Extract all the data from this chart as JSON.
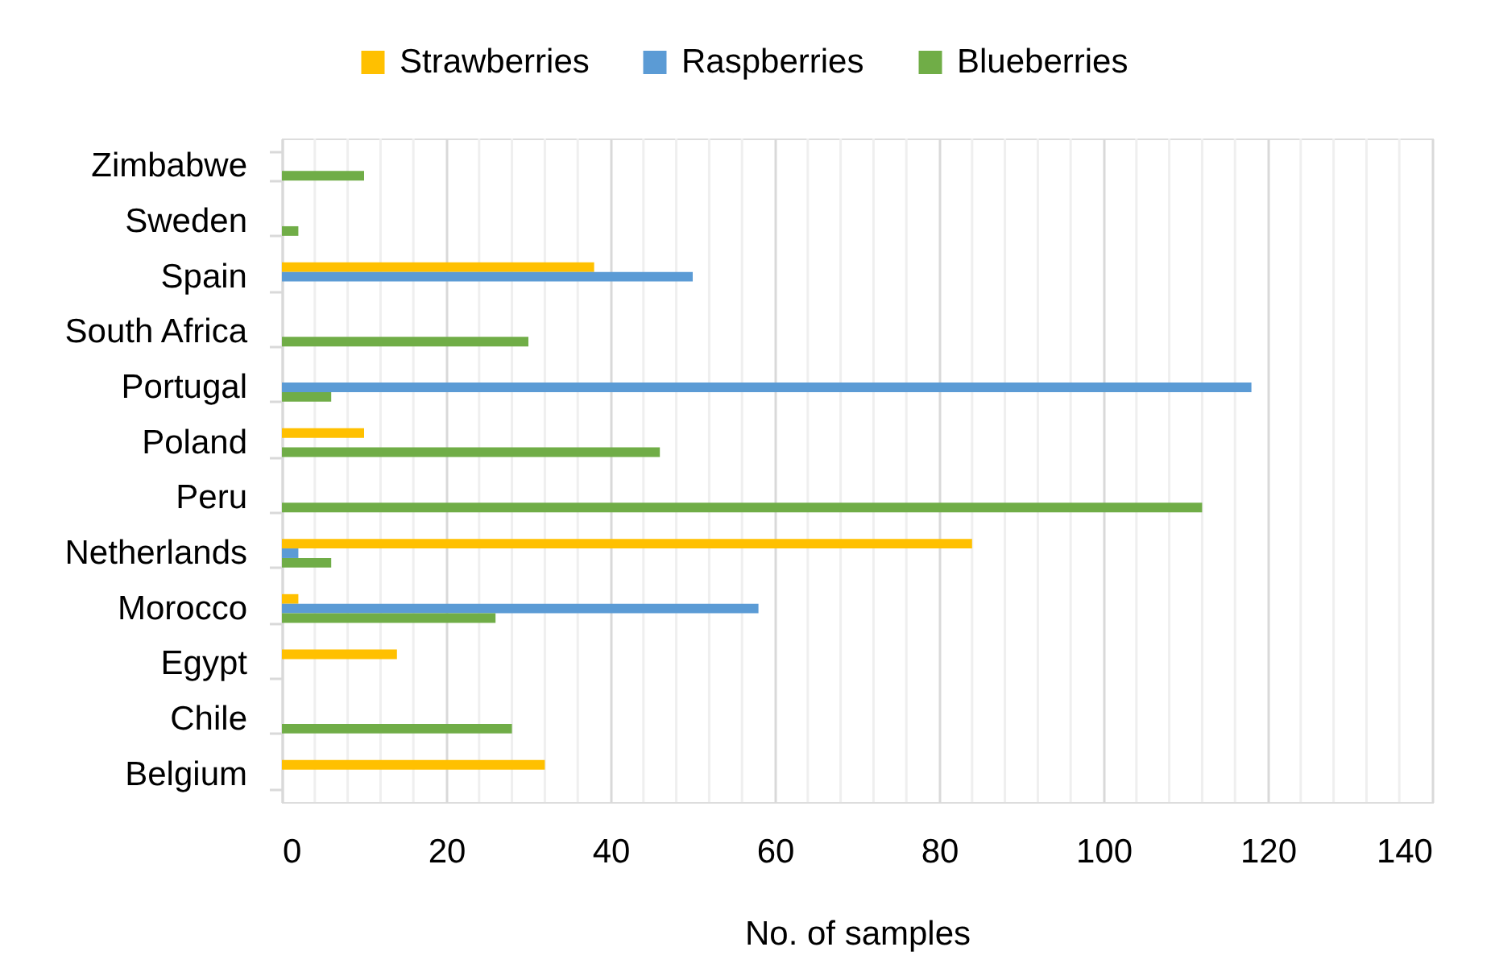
{
  "chart_data": {
    "type": "bar",
    "orientation": "horizontal",
    "xlabel": "No. of samples",
    "categories": [
      "Zimbabwe",
      "Sweden",
      "Spain",
      "South Africa",
      "Portugal",
      "Poland",
      "Peru",
      "Netherlands",
      "Morocco",
      "Egypt",
      "Chile",
      "Belgium"
    ],
    "series": [
      {
        "name": "Strawberries",
        "color": "#ffc000",
        "values": [
          null,
          null,
          38,
          null,
          null,
          10,
          null,
          84,
          2,
          14,
          null,
          32
        ]
      },
      {
        "name": "Raspberries",
        "color": "#5b9bd5",
        "values": [
          null,
          null,
          50,
          null,
          118,
          null,
          null,
          2,
          58,
          null,
          null,
          null
        ]
      },
      {
        "name": "Blueberries",
        "color": "#70ad47",
        "values": [
          10,
          2,
          null,
          30,
          6,
          46,
          112,
          6,
          26,
          null,
          28,
          null
        ]
      }
    ],
    "xlim": [
      0,
      140
    ],
    "xticks": [
      0,
      {
        "value": 4,
        "label": null
      },
      {
        "value": 8,
        "label": null
      },
      {
        "value": 12,
        "label": null
      },
      {
        "value": 16,
        "label": null
      },
      20,
      {
        "value": 24,
        "label": null
      },
      {
        "value": 28,
        "label": null
      },
      {
        "value": 32,
        "label": null
      },
      {
        "value": 36,
        "label": null
      },
      40,
      {
        "value": 44,
        "label": null
      },
      {
        "value": 48,
        "label": null
      },
      {
        "value": 52,
        "label": null
      },
      {
        "value": 56,
        "label": null
      },
      60,
      {
        "value": 64,
        "label": null
      },
      {
        "value": 68,
        "label": null
      },
      {
        "value": 72,
        "label": null
      },
      {
        "value": 76,
        "label": null
      },
      80,
      {
        "value": 84,
        "label": null
      },
      {
        "value": 88,
        "label": null
      },
      {
        "value": 92,
        "label": null
      },
      {
        "value": 96,
        "label": null
      },
      100,
      {
        "value": 104,
        "label": null
      },
      {
        "value": 108,
        "label": null
      },
      {
        "value": 112,
        "label": null
      },
      {
        "value": 116,
        "label": null
      },
      120,
      {
        "value": 124,
        "label": null
      },
      {
        "value": 128,
        "label": null
      },
      {
        "value": 132,
        "label": null
      },
      {
        "value": 136,
        "label": null
      },
      140
    ],
    "grid": true,
    "legend": "top"
  }
}
